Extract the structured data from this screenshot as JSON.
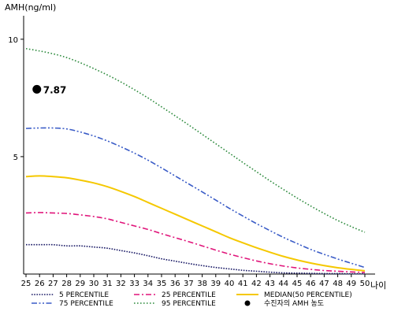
{
  "chart_data": {
    "type": "line",
    "ylabel": "AMH(ng/ml)",
    "xlabel": "나이",
    "ylim": [
      0,
      11
    ],
    "xlim": [
      25,
      50
    ],
    "yticks": [
      5,
      10
    ],
    "xticks": [
      25,
      26,
      27,
      28,
      29,
      30,
      31,
      32,
      33,
      34,
      35,
      36,
      37,
      38,
      39,
      40,
      41,
      42,
      43,
      44,
      45,
      46,
      47,
      48,
      49,
      50
    ],
    "legend_position": "bottom",
    "series": [
      {
        "name": "5 PERCENTILE",
        "color": "#1a1a66",
        "dash": "dotted-dense",
        "x": [
          25,
          26,
          27,
          28,
          29,
          30,
          31,
          32,
          33,
          34,
          35,
          36,
          37,
          38,
          39,
          40,
          41,
          42,
          43,
          44,
          45,
          46,
          47,
          48,
          49,
          50
        ],
        "y": [
          1.25,
          1.25,
          1.25,
          1.2,
          1.2,
          1.15,
          1.1,
          1.0,
          0.9,
          0.78,
          0.65,
          0.55,
          0.45,
          0.36,
          0.28,
          0.22,
          0.16,
          0.12,
          0.08,
          0.05,
          0.04,
          0.03,
          0.02,
          0.02,
          0.01,
          0.01
        ]
      },
      {
        "name": "25 PERCENTILE",
        "color": "#e0147a",
        "dash": "dashdot",
        "x": [
          25,
          26,
          27,
          28,
          29,
          30,
          31,
          32,
          33,
          34,
          35,
          36,
          37,
          38,
          39,
          40,
          41,
          42,
          43,
          44,
          45,
          46,
          47,
          48,
          49,
          50
        ],
        "y": [
          2.6,
          2.62,
          2.6,
          2.58,
          2.52,
          2.45,
          2.35,
          2.2,
          2.05,
          1.9,
          1.72,
          1.55,
          1.38,
          1.2,
          1.02,
          0.85,
          0.7,
          0.56,
          0.44,
          0.34,
          0.26,
          0.2,
          0.15,
          0.12,
          0.09,
          0.07
        ]
      },
      {
        "name": "MEDIAN(50 PERCENTILE)",
        "color": "#f5c800",
        "dash": "solid",
        "x": [
          25,
          26,
          27,
          28,
          29,
          30,
          31,
          32,
          33,
          34,
          35,
          36,
          37,
          38,
          39,
          40,
          41,
          42,
          43,
          44,
          45,
          46,
          47,
          48,
          49,
          50
        ],
        "y": [
          4.15,
          4.18,
          4.15,
          4.1,
          4.0,
          3.88,
          3.72,
          3.52,
          3.3,
          3.05,
          2.8,
          2.55,
          2.3,
          2.05,
          1.8,
          1.55,
          1.33,
          1.12,
          0.93,
          0.75,
          0.6,
          0.47,
          0.36,
          0.27,
          0.2,
          0.14
        ]
      },
      {
        "name": "75 PERCENTILE",
        "color": "#3a5cc7",
        "dash": "dashdotdot",
        "x": [
          25,
          26,
          27,
          28,
          29,
          30,
          31,
          32,
          33,
          34,
          35,
          36,
          37,
          38,
          39,
          40,
          41,
          42,
          43,
          44,
          45,
          46,
          47,
          48,
          49,
          50
        ],
        "y": [
          6.2,
          6.22,
          6.22,
          6.18,
          6.05,
          5.88,
          5.67,
          5.42,
          5.15,
          4.85,
          4.52,
          4.18,
          3.84,
          3.5,
          3.15,
          2.8,
          2.47,
          2.15,
          1.85,
          1.56,
          1.3,
          1.05,
          0.84,
          0.64,
          0.46,
          0.28
        ]
      },
      {
        "name": "95 PERCENTILE",
        "color": "#2e8b3e",
        "dash": "dotted",
        "x": [
          25,
          26,
          27,
          28,
          29,
          30,
          31,
          32,
          33,
          34,
          35,
          36,
          37,
          38,
          39,
          40,
          41,
          42,
          43,
          44,
          45,
          46,
          47,
          48,
          49,
          50
        ],
        "y": [
          9.6,
          9.5,
          9.38,
          9.22,
          9.0,
          8.75,
          8.48,
          8.18,
          7.85,
          7.5,
          7.12,
          6.74,
          6.35,
          5.95,
          5.55,
          5.15,
          4.75,
          4.36,
          3.97,
          3.6,
          3.24,
          2.9,
          2.58,
          2.28,
          2.02,
          1.78
        ]
      }
    ],
    "points": [
      {
        "name": "수진자의 AMH 농도",
        "x": 25.8,
        "y": 7.87,
        "label": "7.87",
        "color": "#000000"
      }
    ]
  }
}
